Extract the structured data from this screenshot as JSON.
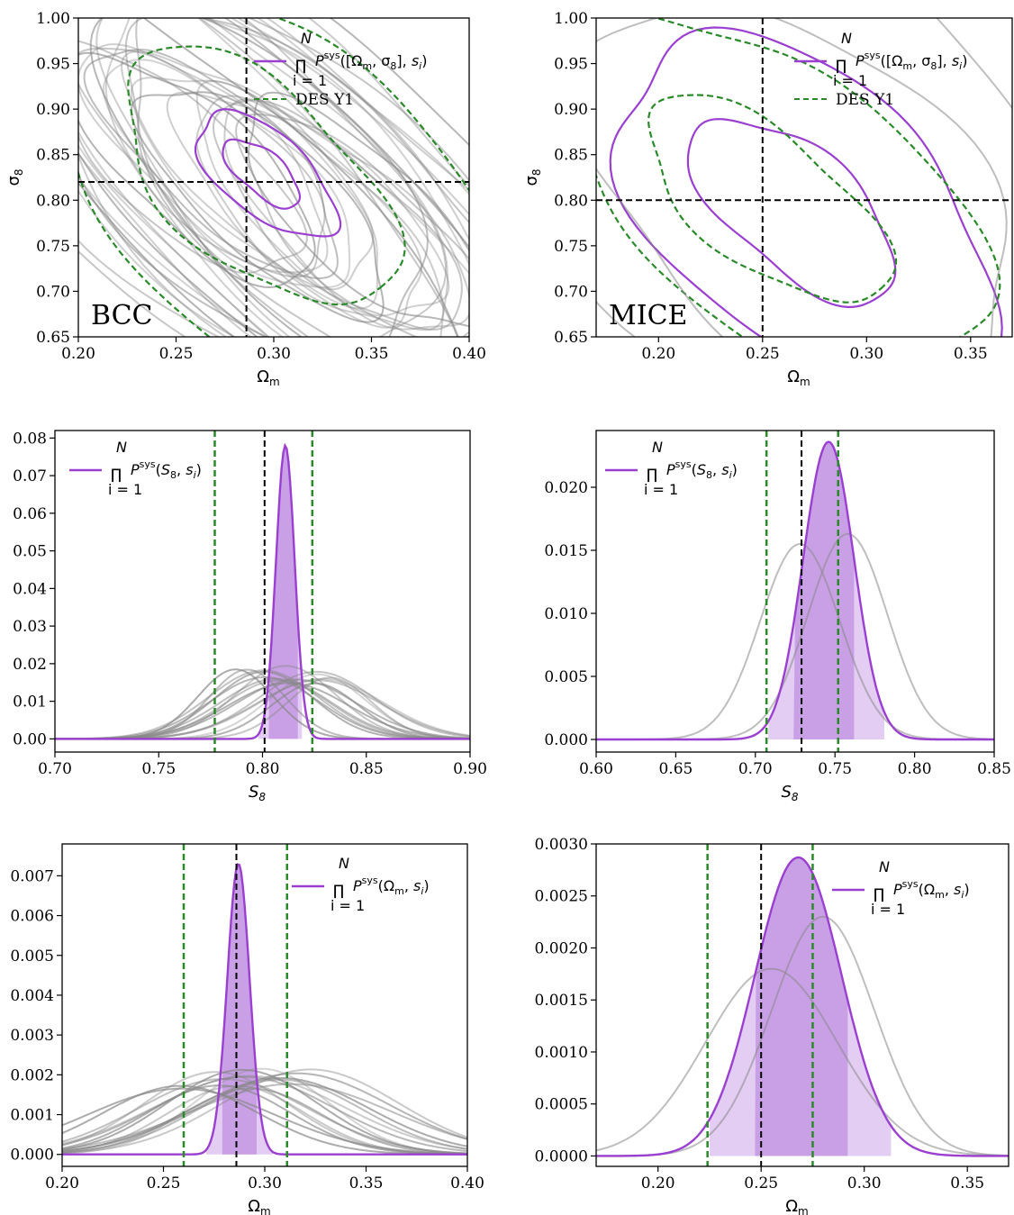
{
  "colors": {
    "purple": "#9b3fd1",
    "purple_fill_dark": "#c9a0e6",
    "purple_fill_light": "#e3cdf3",
    "green": "#2a8a2a",
    "gray": "#888888",
    "black": "#000000"
  },
  "chart_data": [
    {
      "id": "bcc_contour",
      "type": "contour",
      "panel_label": "BCC",
      "xlabel": "Ω_m",
      "ylabel": "σ_8",
      "xlim": [
        0.2,
        0.4
      ],
      "ylim": [
        0.65,
        1.0
      ],
      "xticks": [
        "0.20",
        "0.25",
        "0.30",
        "0.35",
        "0.40"
      ],
      "yticks": [
        "0.65",
        "0.70",
        "0.75",
        "0.80",
        "0.85",
        "0.90",
        "0.95",
        "1.00"
      ],
      "truth": {
        "x": 0.286,
        "y": 0.82
      },
      "legend": [
        {
          "label": "∏ P^sys([Ω_m, σ_8], s_i)",
          "style": "solid",
          "color": "purple"
        },
        {
          "label": "DES Y1",
          "style": "dashed",
          "color": "green"
        }
      ],
      "ellipses": [
        {
          "series": "combined",
          "color": "purple",
          "dash": false,
          "cx": 0.296,
          "cy": 0.828,
          "a": 0.043,
          "b": 0.0075,
          "angle": -40
        },
        {
          "series": "combined",
          "color": "purple",
          "dash": false,
          "cx": 0.294,
          "cy": 0.83,
          "a": 0.024,
          "b": 0.0038,
          "angle": -40
        },
        {
          "series": "DES Y1",
          "color": "green",
          "dash": true,
          "cx": 0.298,
          "cy": 0.813,
          "a": 0.135,
          "b": 0.028,
          "angle": -42
        },
        {
          "series": "DES Y1",
          "color": "green",
          "dash": true,
          "cx": 0.292,
          "cy": 0.825,
          "a": 0.085,
          "b": 0.016,
          "angle": -42
        }
      ],
      "gray_contours": {
        "count": 16,
        "spread_x": [
          0.24,
          0.35
        ],
        "a": 0.16,
        "b": 0.02,
        "angle": -42
      }
    },
    {
      "id": "mice_contour",
      "type": "contour",
      "panel_label": "MICE",
      "xlabel": "Ω_m",
      "ylabel": "σ_8",
      "xlim": [
        0.17,
        0.37
      ],
      "ylim": [
        0.65,
        1.0
      ],
      "xticks": [
        "0.20",
        "0.25",
        "0.30",
        "0.35"
      ],
      "xtick_values": [
        0.2,
        0.25,
        0.3,
        0.35
      ],
      "yticks": [
        "0.65",
        "0.70",
        "0.75",
        "0.80",
        "0.85",
        "0.90",
        "0.95",
        "1.00"
      ],
      "truth": {
        "x": 0.25,
        "y": 0.8
      },
      "legend": [
        {
          "label": "∏ P^sys([Ω_m, σ_8], s_i)",
          "style": "solid",
          "color": "purple"
        },
        {
          "label": "DES Y1",
          "style": "dashed",
          "color": "green"
        }
      ],
      "ellipses": [
        {
          "series": "combined",
          "color": "purple",
          "dash": false,
          "cx": 0.27,
          "cy": 0.79,
          "a": 0.105,
          "b": 0.024,
          "angle": -40
        },
        {
          "series": "combined",
          "color": "purple",
          "dash": false,
          "cx": 0.265,
          "cy": 0.79,
          "a": 0.06,
          "b": 0.011,
          "angle": -40
        },
        {
          "series": "DES Y1",
          "color": "green",
          "dash": true,
          "cx": 0.257,
          "cy": 0.8,
          "a": 0.12,
          "b": 0.024,
          "angle": -38
        },
        {
          "series": "DES Y1",
          "color": "green",
          "dash": true,
          "cx": 0.252,
          "cy": 0.8,
          "a": 0.07,
          "b": 0.012,
          "angle": -38
        },
        {
          "series": "gray",
          "color": "gray",
          "dash": false,
          "cx": 0.265,
          "cy": 0.82,
          "a": 0.155,
          "b": 0.04,
          "angle": -40
        },
        {
          "series": "gray",
          "color": "gray",
          "dash": false,
          "cx": 0.268,
          "cy": 0.8,
          "a": 0.12,
          "b": 0.028,
          "angle": -40
        }
      ]
    },
    {
      "id": "bcc_s8",
      "type": "line",
      "xlabel": "S_8",
      "xlim": [
        0.7,
        0.9
      ],
      "ylim": [
        -0.0035,
        0.082
      ],
      "xticks": [
        "0.70",
        "0.75",
        "0.80",
        "0.85",
        "0.90"
      ],
      "yticks": [
        "0.00",
        "0.01",
        "0.02",
        "0.03",
        "0.04",
        "0.05",
        "0.06",
        "0.07",
        "0.08"
      ],
      "ytick_values": [
        0,
        0.01,
        0.02,
        0.03,
        0.04,
        0.05,
        0.06,
        0.07,
        0.08
      ],
      "truth": 0.801,
      "des_bounds": [
        0.777,
        0.824
      ],
      "legend_label": "∏ P^sys(S_8, s_i)",
      "combined": {
        "mu": 0.811,
        "sigma": 0.0045,
        "peak": 0.078
      },
      "band_light": [
        0.798,
        0.819
      ],
      "band_dark": [
        0.803,
        0.817
      ],
      "gray": {
        "count": 16,
        "mu_range": [
          0.785,
          0.835
        ],
        "sigma": 0.024,
        "peak": 0.017
      }
    },
    {
      "id": "mice_s8",
      "type": "line",
      "xlabel": "S_8",
      "xlim": [
        0.6,
        0.85
      ],
      "ylim": [
        -0.001,
        0.0245
      ],
      "xticks": [
        "0.60",
        "0.65",
        "0.70",
        "0.75",
        "0.80",
        "0.85"
      ],
      "yticks": [
        "0.000",
        "0.005",
        "0.010",
        "0.015",
        "0.020"
      ],
      "ytick_values": [
        0,
        0.005,
        0.01,
        0.015,
        0.02
      ],
      "truth": 0.729,
      "des_bounds": [
        0.707,
        0.752
      ],
      "legend_label": "∏ P^sys(S_8, s_i)",
      "combined": {
        "mu": 0.746,
        "sigma": 0.016,
        "peak": 0.0236
      },
      "band_light": [
        0.708,
        0.781
      ],
      "band_dark": [
        0.724,
        0.762
      ],
      "gray_curves": [
        {
          "mu": 0.728,
          "sigma": 0.025,
          "peak": 0.0155
        },
        {
          "mu": 0.758,
          "sigma": 0.025,
          "peak": 0.0163
        }
      ]
    },
    {
      "id": "bcc_om",
      "type": "line",
      "xlabel": "Ω_m",
      "xlim": [
        0.2,
        0.4
      ],
      "ylim": [
        -0.0003,
        0.0078
      ],
      "xticks": [
        "0.20",
        "0.25",
        "0.30",
        "0.35",
        "0.40"
      ],
      "yticks": [
        "0.000",
        "0.001",
        "0.002",
        "0.003",
        "0.004",
        "0.005",
        "0.006",
        "0.007"
      ],
      "ytick_values": [
        0,
        0.001,
        0.002,
        0.003,
        0.004,
        0.005,
        0.006,
        0.007
      ],
      "truth": 0.286,
      "des_bounds": [
        0.26,
        0.311
      ],
      "legend_label": "∏ P^sys(Ω_m, s_i)",
      "combined": {
        "mu": 0.287,
        "sigma": 0.0055,
        "peak": 0.0073
      },
      "band_light": [
        0.271,
        0.304
      ],
      "band_dark": [
        0.279,
        0.296
      ],
      "gray": {
        "count": 16,
        "mu_range": [
          0.255,
          0.325
        ],
        "sigma": 0.04,
        "peak": 0.0019
      }
    },
    {
      "id": "mice_om",
      "type": "line",
      "xlabel": "Ω_m",
      "xlim": [
        0.17,
        0.37
      ],
      "ylim": [
        -0.0001,
        0.003
      ],
      "xticks": [
        "0.20",
        "0.25",
        "0.30",
        "0.35"
      ],
      "xtick_values": [
        0.2,
        0.25,
        0.3,
        0.35
      ],
      "yticks": [
        "0.0000",
        "0.0005",
        "0.0010",
        "0.0015",
        "0.0020",
        "0.0025",
        "0.0030"
      ],
      "ytick_values": [
        0,
        0.0005,
        0.001,
        0.0015,
        0.002,
        0.0025,
        0.003
      ],
      "truth": 0.25,
      "des_bounds": [
        0.224,
        0.275
      ],
      "legend_label": "∏ P^sys(Ω_m, s_i)",
      "combined": {
        "mu": 0.268,
        "sigma": 0.021,
        "peak": 0.00287
      },
      "band_light": [
        0.225,
        0.313
      ],
      "band_dark": [
        0.247,
        0.292
      ],
      "gray_curves": [
        {
          "mu": 0.255,
          "sigma": 0.032,
          "peak": 0.0018
        },
        {
          "mu": 0.28,
          "sigma": 0.025,
          "peak": 0.0023
        }
      ]
    }
  ]
}
